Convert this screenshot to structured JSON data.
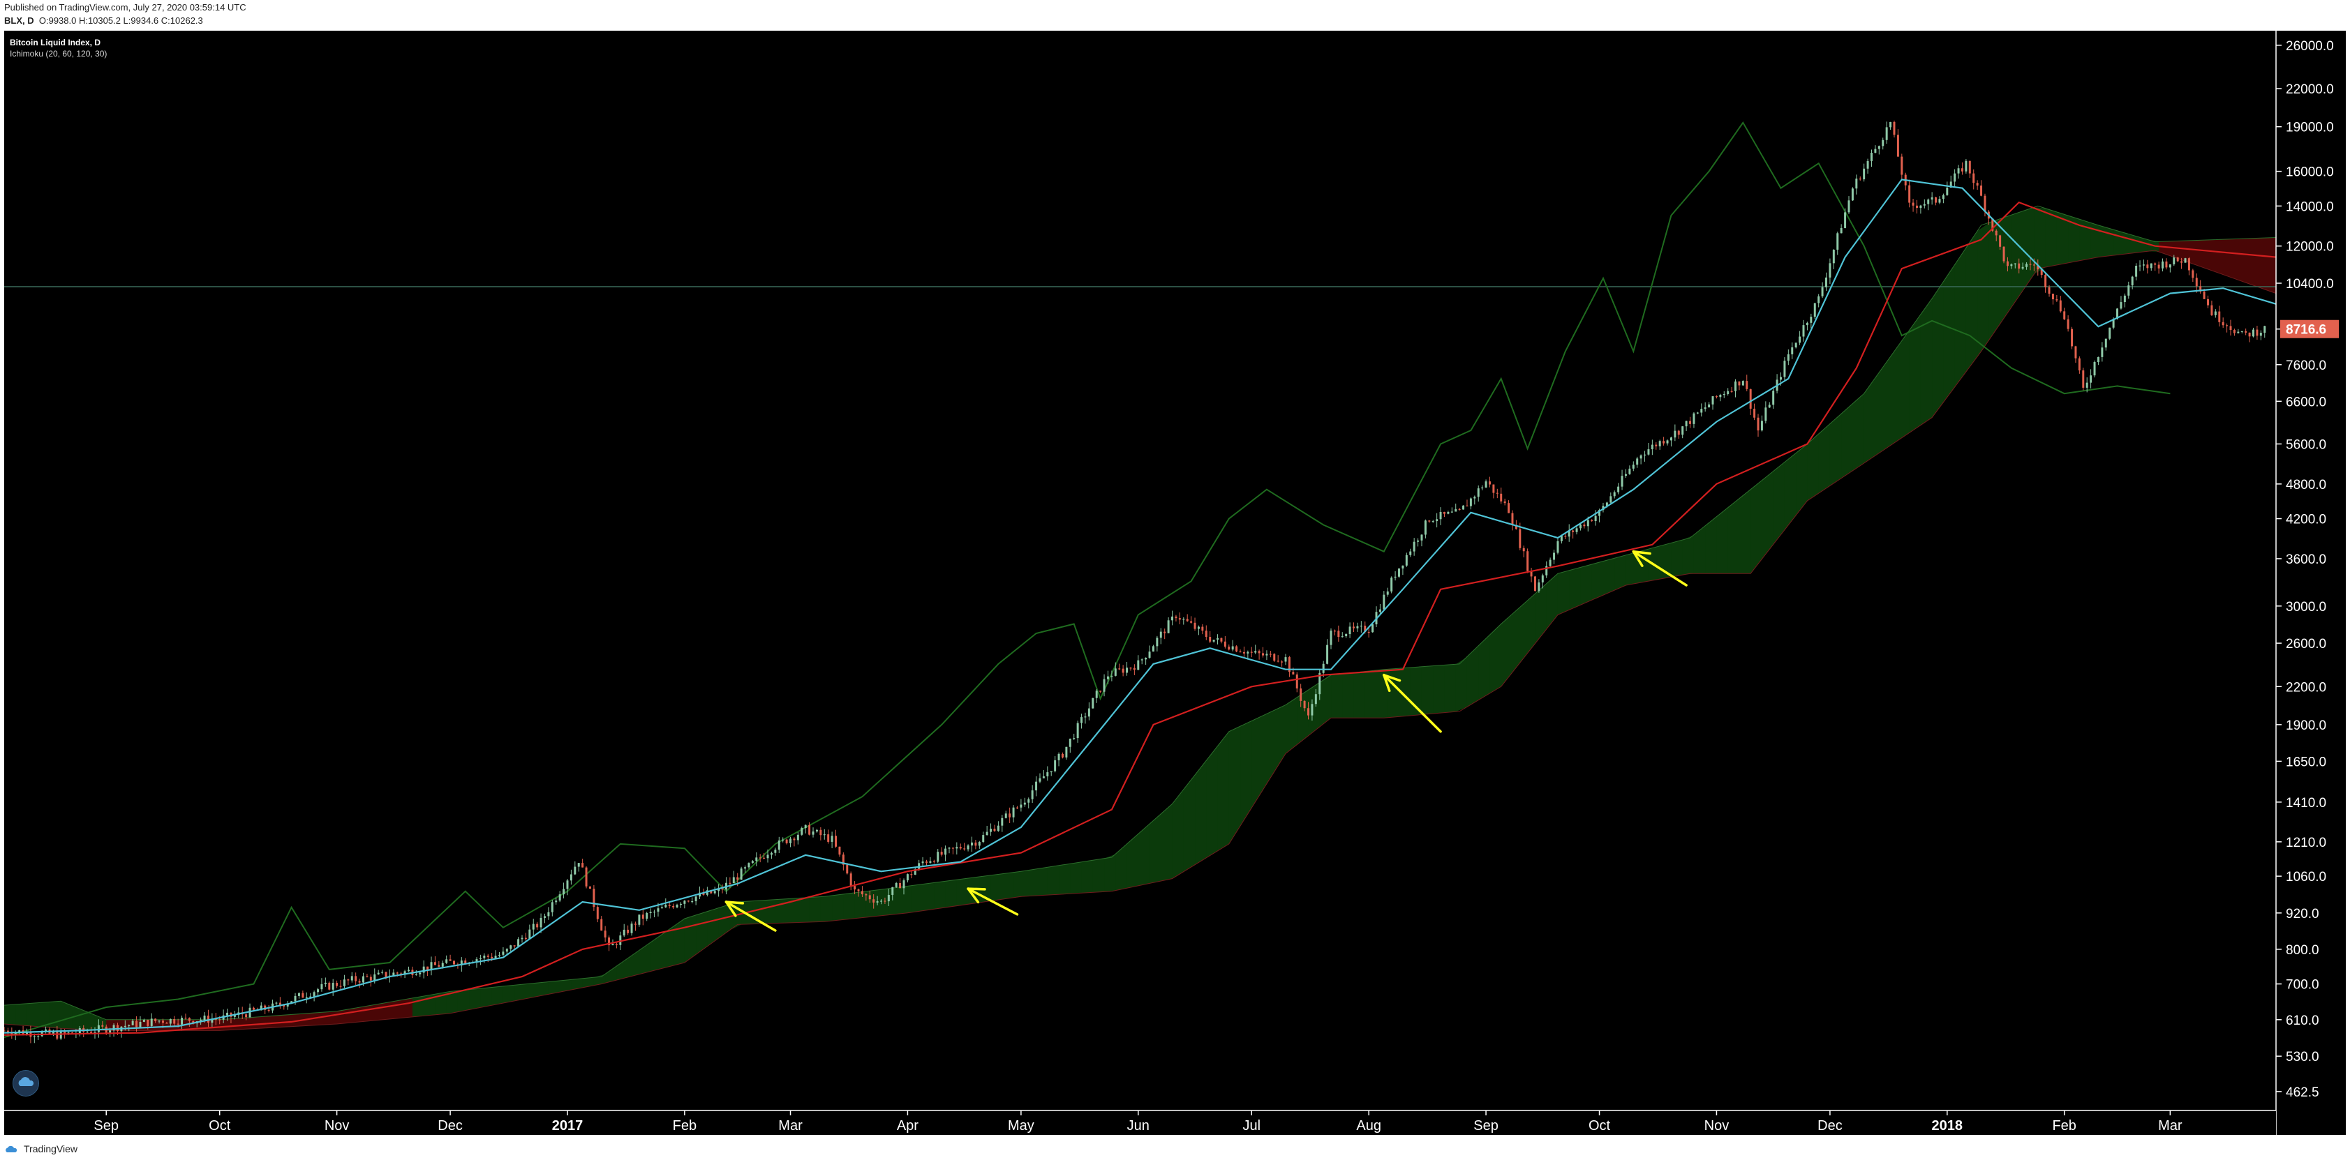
{
  "header": {
    "published": "Published on TradingView.com, July 27, 2020 03:59:14 UTC",
    "symbol": "BLX, D",
    "ohlc": "O:9938.0 H:10305.2 L:9934.6 C:10262.3"
  },
  "footer": {
    "brand": "TradingView"
  },
  "legend": {
    "title": "Bitcoin Liquid Index, D",
    "indicator": "Ichimoku (20, 60, 120, 30)"
  },
  "colors": {
    "background": "#000000",
    "candle_up": "#8fc9a8",
    "candle_down": "#e2614e",
    "conversion_line": "#4fc3d6",
    "base_line": "#d21f1f",
    "lagging_span": "#1f6b1f",
    "cloud_bull": "#0b3a0b",
    "cloud_bear": "#4a0606",
    "arrow": "#ffff1a",
    "last_price_badge": "#e2614e",
    "crosshair": "#3a6b5a"
  },
  "icons": {
    "logo": "tradingview-cloud-icon",
    "brand": "tradingview-cloud-icon"
  },
  "chart_data": {
    "type": "line",
    "subtype": "candlestick-with-ichimoku",
    "title": "Bitcoin Liquid Index, D",
    "scale": "log",
    "x_range": [
      "2016-08-05",
      "2018-03-29"
    ],
    "y_range": [
      430,
      27500
    ],
    "x_tick_labels": [
      {
        "label": "Sep",
        "date": "2016-09-01"
      },
      {
        "label": "Oct",
        "date": "2016-10-01"
      },
      {
        "label": "Nov",
        "date": "2016-11-01"
      },
      {
        "label": "Dec",
        "date": "2016-12-01"
      },
      {
        "label": "2017",
        "date": "2017-01-01",
        "bold": true
      },
      {
        "label": "Feb",
        "date": "2017-02-01"
      },
      {
        "label": "Mar",
        "date": "2017-03-01"
      },
      {
        "label": "Apr",
        "date": "2017-04-01"
      },
      {
        "label": "May",
        "date": "2017-05-01"
      },
      {
        "label": "Jun",
        "date": "2017-06-01"
      },
      {
        "label": "Jul",
        "date": "2017-07-01"
      },
      {
        "label": "Aug",
        "date": "2017-08-01"
      },
      {
        "label": "Sep",
        "date": "2017-09-01"
      },
      {
        "label": "Oct",
        "date": "2017-10-01"
      },
      {
        "label": "Nov",
        "date": "2017-11-01"
      },
      {
        "label": "Dec",
        "date": "2017-12-01"
      },
      {
        "label": "2018",
        "date": "2018-01-01",
        "bold": true
      },
      {
        "label": "Feb",
        "date": "2018-02-01"
      },
      {
        "label": "Mar",
        "date": "2018-03-01"
      }
    ],
    "y_tick_labels": [
      "26000.0",
      "22000.0",
      "19000.0",
      "16000.0",
      "14000.0",
      "12000.0",
      "10400.0",
      "8716.6",
      "7600.0",
      "6600.0",
      "5600.0",
      "4800.0",
      "4200.0",
      "3600.0",
      "3000.0",
      "2600.0",
      "2200.0",
      "1900.0",
      "1650.0",
      "1410.0",
      "1210.0",
      "1060.0",
      "920.0",
      "800.0",
      "700.0",
      "610.0",
      "530.0",
      "462.5"
    ],
    "last_price": {
      "label": "8716.6",
      "value": 8716.6
    },
    "horizontal_line": 10262.3,
    "price_path": [
      [
        "2016-08-05",
        585
      ],
      [
        "2016-08-20",
        575
      ],
      [
        "2016-09-01",
        590
      ],
      [
        "2016-09-15",
        608
      ],
      [
        "2016-10-01",
        612
      ],
      [
        "2016-10-15",
        640
      ],
      [
        "2016-10-28",
        690
      ],
      [
        "2016-11-05",
        710
      ],
      [
        "2016-11-20",
        735
      ],
      [
        "2016-12-01",
        760
      ],
      [
        "2016-12-15",
        785
      ],
      [
        "2016-12-25",
        890
      ],
      [
        "2017-01-04",
        1130
      ],
      [
        "2017-01-12",
        800
      ],
      [
        "2017-01-20",
        900
      ],
      [
        "2017-02-01",
        970
      ],
      [
        "2017-02-10",
        1000
      ],
      [
        "2017-02-24",
        1180
      ],
      [
        "2017-03-05",
        1270
      ],
      [
        "2017-03-12",
        1220
      ],
      [
        "2017-03-18",
        1000
      ],
      [
        "2017-03-25",
        960
      ],
      [
        "2017-04-05",
        1120
      ],
      [
        "2017-04-20",
        1220
      ],
      [
        "2017-05-01",
        1400
      ],
      [
        "2017-05-12",
        1700
      ],
      [
        "2017-05-24",
        2300
      ],
      [
        "2017-06-01",
        2400
      ],
      [
        "2017-06-11",
        2900
      ],
      [
        "2017-06-20",
        2650
      ],
      [
        "2017-07-01",
        2500
      ],
      [
        "2017-07-10",
        2450
      ],
      [
        "2017-07-16",
        1950
      ],
      [
        "2017-07-22",
        2700
      ],
      [
        "2017-08-01",
        2750
      ],
      [
        "2017-08-08",
        3400
      ],
      [
        "2017-08-17",
        4200
      ],
      [
        "2017-08-25",
        4300
      ],
      [
        "2017-09-01",
        4850
      ],
      [
        "2017-09-07",
        4350
      ],
      [
        "2017-09-14",
        3200
      ],
      [
        "2017-09-20",
        3850
      ],
      [
        "2017-10-01",
        4300
      ],
      [
        "2017-10-12",
        5400
      ],
      [
        "2017-10-22",
        5900
      ],
      [
        "2017-11-01",
        6700
      ],
      [
        "2017-11-08",
        7200
      ],
      [
        "2017-11-12",
        5900
      ],
      [
        "2017-11-20",
        7900
      ],
      [
        "2017-11-28",
        9800
      ],
      [
        "2017-12-07",
        15000
      ],
      [
        "2017-12-17",
        19300
      ],
      [
        "2017-12-22",
        14000
      ],
      [
        "2017-12-29",
        14300
      ],
      [
        "2018-01-06",
        16500
      ],
      [
        "2018-01-10",
        14500
      ],
      [
        "2018-01-17",
        11000
      ],
      [
        "2018-01-24",
        11200
      ],
      [
        "2018-02-01",
        9200
      ],
      [
        "2018-02-06",
        6900
      ],
      [
        "2018-02-12",
        8500
      ],
      [
        "2018-02-20",
        11000
      ],
      [
        "2018-03-05",
        11400
      ],
      [
        "2018-03-12",
        9300
      ],
      [
        "2018-03-20",
        8500
      ],
      [
        "2018-03-26",
        8716.6
      ]
    ],
    "series": [
      {
        "role": "conversion_line",
        "points": [
          [
            "2016-08-05",
            580
          ],
          [
            "2016-08-25",
            585
          ],
          [
            "2016-09-20",
            595
          ],
          [
            "2016-10-20",
            650
          ],
          [
            "2016-11-15",
            720
          ],
          [
            "2016-12-15",
            775
          ],
          [
            "2017-01-05",
            960
          ],
          [
            "2017-01-20",
            930
          ],
          [
            "2017-02-15",
            1030
          ],
          [
            "2017-03-05",
            1150
          ],
          [
            "2017-03-25",
            1080
          ],
          [
            "2017-04-15",
            1120
          ],
          [
            "2017-05-01",
            1280
          ],
          [
            "2017-05-20",
            1800
          ],
          [
            "2017-06-05",
            2400
          ],
          [
            "2017-06-20",
            2550
          ],
          [
            "2017-07-10",
            2350
          ],
          [
            "2017-07-22",
            2350
          ],
          [
            "2017-08-10",
            3200
          ],
          [
            "2017-08-28",
            4300
          ],
          [
            "2017-09-20",
            3900
          ],
          [
            "2017-10-10",
            4700
          ],
          [
            "2017-11-01",
            6100
          ],
          [
            "2017-11-20",
            7200
          ],
          [
            "2017-12-05",
            11500
          ],
          [
            "2017-12-20",
            15500
          ],
          [
            "2018-01-05",
            15000
          ],
          [
            "2018-01-20",
            12000
          ],
          [
            "2018-02-10",
            8800
          ],
          [
            "2018-03-01",
            10000
          ],
          [
            "2018-03-15",
            10200
          ],
          [
            "2018-03-29",
            9600
          ]
        ]
      },
      {
        "role": "base_line",
        "points": [
          [
            "2016-08-05",
            575
          ],
          [
            "2016-09-10",
            580
          ],
          [
            "2016-10-20",
            605
          ],
          [
            "2016-11-20",
            650
          ],
          [
            "2016-12-20",
            720
          ],
          [
            "2017-01-05",
            800
          ],
          [
            "2017-02-01",
            870
          ],
          [
            "2017-03-01",
            960
          ],
          [
            "2017-04-01",
            1080
          ],
          [
            "2017-05-01",
            1160
          ],
          [
            "2017-05-25",
            1370
          ],
          [
            "2017-06-05",
            1900
          ],
          [
            "2017-07-01",
            2200
          ],
          [
            "2017-07-20",
            2300
          ],
          [
            "2017-08-10",
            2350
          ],
          [
            "2017-08-20",
            3200
          ],
          [
            "2017-09-20",
            3500
          ],
          [
            "2017-10-15",
            3800
          ],
          [
            "2017-11-01",
            4800
          ],
          [
            "2017-11-25",
            5600
          ],
          [
            "2017-12-08",
            7500
          ],
          [
            "2017-12-20",
            11000
          ],
          [
            "2018-01-10",
            12300
          ],
          [
            "2018-01-20",
            14200
          ],
          [
            "2018-02-05",
            13000
          ],
          [
            "2018-02-25",
            12000
          ],
          [
            "2018-03-29",
            11500
          ]
        ]
      },
      {
        "role": "lagging_span",
        "points": [
          [
            "2016-08-05",
            570
          ],
          [
            "2016-09-01",
            640
          ],
          [
            "2016-09-20",
            660
          ],
          [
            "2016-10-10",
            700
          ],
          [
            "2016-10-20",
            940
          ],
          [
            "2016-10-30",
            740
          ],
          [
            "2016-11-15",
            760
          ],
          [
            "2016-12-05",
            1000
          ],
          [
            "2016-12-15",
            870
          ],
          [
            "2017-01-01",
            1000
          ],
          [
            "2017-01-15",
            1200
          ],
          [
            "2017-02-01",
            1180
          ],
          [
            "2017-02-12",
            1000
          ],
          [
            "2017-02-25",
            1200
          ],
          [
            "2017-03-20",
            1440
          ],
          [
            "2017-04-10",
            1900
          ],
          [
            "2017-04-25",
            2400
          ],
          [
            "2017-05-05",
            2700
          ],
          [
            "2017-05-15",
            2800
          ],
          [
            "2017-05-22",
            2100
          ],
          [
            "2017-06-01",
            2900
          ],
          [
            "2017-06-15",
            3300
          ],
          [
            "2017-06-25",
            4200
          ],
          [
            "2017-07-05",
            4700
          ],
          [
            "2017-07-20",
            4100
          ],
          [
            "2017-08-05",
            3700
          ],
          [
            "2017-08-20",
            5600
          ],
          [
            "2017-08-28",
            5900
          ],
          [
            "2017-09-05",
            7200
          ],
          [
            "2017-09-12",
            5500
          ],
          [
            "2017-09-22",
            8000
          ],
          [
            "2017-10-02",
            10600
          ],
          [
            "2017-10-10",
            8000
          ],
          [
            "2017-10-20",
            13500
          ],
          [
            "2017-10-30",
            16000
          ],
          [
            "2017-11-08",
            19300
          ],
          [
            "2017-11-18",
            15000
          ],
          [
            "2017-11-28",
            16500
          ],
          [
            "2017-12-10",
            12000
          ],
          [
            "2017-12-20",
            8500
          ],
          [
            "2017-12-28",
            9000
          ],
          [
            "2018-01-07",
            8500
          ],
          [
            "2018-01-18",
            7500
          ],
          [
            "2018-02-01",
            6800
          ],
          [
            "2018-02-15",
            7000
          ],
          [
            "2018-03-01",
            6800
          ]
        ]
      },
      {
        "role": "cloud",
        "upper": [
          [
            "2016-08-05",
            645
          ],
          [
            "2016-08-20",
            655
          ],
          [
            "2016-09-01",
            610
          ],
          [
            "2016-10-01",
            610
          ],
          [
            "2016-11-01",
            630
          ],
          [
            "2016-12-01",
            680
          ],
          [
            "2017-01-10",
            720
          ],
          [
            "2017-02-01",
            900
          ],
          [
            "2017-02-15",
            960
          ],
          [
            "2017-03-10",
            980
          ],
          [
            "2017-04-01",
            1020
          ],
          [
            "2017-05-01",
            1080
          ],
          [
            "2017-05-25",
            1140
          ],
          [
            "2017-06-10",
            1400
          ],
          [
            "2017-06-25",
            1850
          ],
          [
            "2017-07-10",
            2050
          ],
          [
            "2017-07-22",
            2300
          ],
          [
            "2017-08-05",
            2350
          ],
          [
            "2017-08-25",
            2400
          ],
          [
            "2017-09-05",
            2800
          ],
          [
            "2017-09-20",
            3400
          ],
          [
            "2017-10-08",
            3650
          ],
          [
            "2017-10-25",
            3900
          ],
          [
            "2017-11-10",
            4700
          ],
          [
            "2017-11-25",
            5600
          ],
          [
            "2017-12-10",
            6800
          ],
          [
            "2017-12-28",
            9800
          ],
          [
            "2018-01-10",
            13000
          ],
          [
            "2018-01-25",
            14000
          ],
          [
            "2018-02-10",
            13000
          ],
          [
            "2018-02-25",
            12200
          ],
          [
            "2018-03-29",
            12400
          ]
        ],
        "lower": [
          [
            "2016-08-05",
            600
          ],
          [
            "2016-08-20",
            590
          ],
          [
            "2016-09-01",
            585
          ],
          [
            "2016-10-01",
            585
          ],
          [
            "2016-11-01",
            600
          ],
          [
            "2016-12-01",
            625
          ],
          [
            "2017-01-10",
            700
          ],
          [
            "2017-02-01",
            760
          ],
          [
            "2017-02-15",
            880
          ],
          [
            "2017-03-10",
            890
          ],
          [
            "2017-04-01",
            920
          ],
          [
            "2017-05-01",
            980
          ],
          [
            "2017-05-25",
            1000
          ],
          [
            "2017-06-10",
            1050
          ],
          [
            "2017-06-25",
            1200
          ],
          [
            "2017-07-10",
            1700
          ],
          [
            "2017-07-22",
            1950
          ],
          [
            "2017-08-05",
            1950
          ],
          [
            "2017-08-25",
            2000
          ],
          [
            "2017-09-05",
            2200
          ],
          [
            "2017-09-20",
            2900
          ],
          [
            "2017-10-08",
            3250
          ],
          [
            "2017-10-25",
            3400
          ],
          [
            "2017-11-10",
            3400
          ],
          [
            "2017-11-25",
            4500
          ],
          [
            "2017-12-10",
            5200
          ],
          [
            "2017-12-28",
            6200
          ],
          [
            "2018-01-10",
            8000
          ],
          [
            "2018-01-25",
            11000
          ],
          [
            "2018-02-10",
            11500
          ],
          [
            "2018-02-25",
            11800
          ],
          [
            "2018-03-29",
            10000
          ]
        ],
        "bearish_ranges": [
          [
            "2016-09-01",
            "2016-11-20"
          ],
          [
            "2018-02-25",
            "2018-03-29"
          ]
        ]
      }
    ],
    "annotations": [
      {
        "type": "arrow",
        "from": [
          "2017-02-25",
          860
        ],
        "to": [
          "2017-02-12",
          960
        ]
      },
      {
        "type": "arrow",
        "from": [
          "2017-04-30",
          915
        ],
        "to": [
          "2017-04-17",
          1010
        ]
      },
      {
        "type": "arrow",
        "from": [
          "2017-08-20",
          1850
        ],
        "to": [
          "2017-08-05",
          2300
        ]
      },
      {
        "type": "arrow",
        "from": [
          "2017-10-24",
          3250
        ],
        "to": [
          "2017-10-10",
          3700
        ]
      }
    ]
  }
}
